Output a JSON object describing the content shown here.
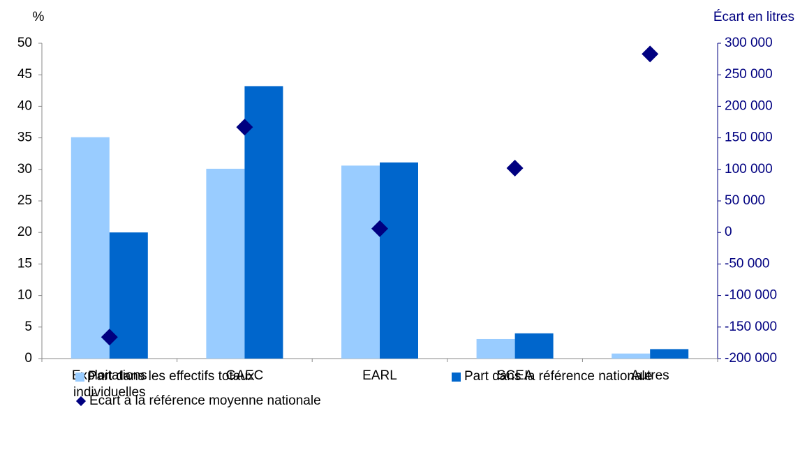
{
  "chart_data": {
    "type": "bar",
    "ylabel": "%",
    "y2label": "Écart en litres",
    "categories": [
      "Exploitations individuelles",
      "GAEC",
      "EARL",
      "SCEA",
      "Autres"
    ],
    "series": [
      {
        "name": "Part dans les effectifs totaux",
        "color": "#99ccff",
        "values": [
          35.1,
          30.1,
          30.6,
          3.1,
          0.8
        ]
      },
      {
        "name": "Part dans la référence nationale",
        "color": "#0066cc",
        "values": [
          20.0,
          43.2,
          31.1,
          4.0,
          1.5
        ]
      },
      {
        "name": "Écart à la référence moyenne nationale",
        "color": "#000080",
        "type": "scatter",
        "marker": "diamond",
        "axis": "y2",
        "values": [
          -166000,
          167000,
          6000,
          102000,
          283000
        ]
      }
    ],
    "ylim": [
      0,
      50
    ],
    "yticks": [
      0,
      5,
      10,
      15,
      20,
      25,
      30,
      35,
      40,
      45,
      50
    ],
    "y2lim": [
      -200000,
      300000
    ],
    "y2ticks": [
      {
        "value": -200000,
        "label": "-200 000"
      },
      {
        "value": -150000,
        "label": "-150 000"
      },
      {
        "value": -100000,
        "label": "-100 000"
      },
      {
        "value": -50000,
        "label": "-50 000"
      },
      0,
      {
        "value": 50000,
        "label": "50 000"
      },
      {
        "value": 100000,
        "label": "100 000"
      },
      {
        "value": 150000,
        "label": "150 000"
      },
      {
        "value": 200000,
        "label": "200 000"
      },
      {
        "value": 250000,
        "label": "250 000"
      },
      {
        "value": 300000,
        "label": "300 000"
      }
    ],
    "legend": "bottom"
  }
}
